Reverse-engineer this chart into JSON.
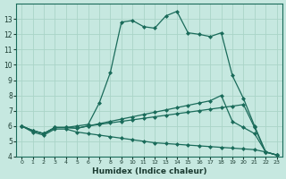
{
  "title": "",
  "xlabel": "Humidex (Indice chaleur)",
  "ylabel": "",
  "bg_color": "#c6e8e0",
  "grid_color": "#aad4c8",
  "line_color": "#1a6b5a",
  "x_values": [
    0,
    1,
    2,
    3,
    4,
    5,
    6,
    7,
    8,
    9,
    10,
    11,
    12,
    13,
    14,
    15,
    16,
    17,
    18,
    19,
    20,
    21,
    22,
    23
  ],
  "line1_y": [
    6.0,
    5.7,
    5.5,
    5.9,
    5.9,
    6.0,
    6.1,
    7.5,
    9.5,
    12.8,
    12.9,
    12.5,
    12.4,
    13.2,
    13.5,
    12.1,
    12.0,
    11.85,
    12.1,
    9.3,
    7.8,
    6.0,
    4.3,
    4.1
  ],
  "line2_y": [
    6.0,
    5.7,
    5.5,
    5.9,
    5.9,
    5.85,
    6.0,
    6.15,
    6.3,
    6.45,
    6.6,
    6.75,
    6.9,
    7.05,
    7.2,
    7.35,
    7.5,
    7.65,
    8.0,
    6.3,
    5.9,
    5.5,
    4.3,
    4.1
  ],
  "line3_y": [
    6.0,
    5.7,
    5.5,
    5.9,
    5.9,
    5.85,
    6.0,
    6.1,
    6.2,
    6.3,
    6.4,
    6.5,
    6.6,
    6.7,
    6.8,
    6.9,
    7.0,
    7.1,
    7.2,
    7.3,
    7.4,
    5.9,
    4.3,
    4.1
  ],
  "line4_y": [
    6.0,
    5.6,
    5.4,
    5.8,
    5.8,
    5.6,
    5.5,
    5.4,
    5.3,
    5.2,
    5.1,
    5.0,
    4.9,
    4.85,
    4.8,
    4.75,
    4.7,
    4.65,
    4.6,
    4.55,
    4.5,
    4.45,
    4.3,
    4.1
  ],
  "ylim": [
    4,
    14
  ],
  "xlim": [
    -0.5,
    23.5
  ],
  "yticks": [
    4,
    5,
    6,
    7,
    8,
    9,
    10,
    11,
    12,
    13
  ],
  "xticks": [
    0,
    1,
    2,
    3,
    4,
    5,
    6,
    7,
    8,
    9,
    10,
    11,
    12,
    13,
    14,
    15,
    16,
    17,
    18,
    19,
    20,
    21,
    22,
    23
  ]
}
